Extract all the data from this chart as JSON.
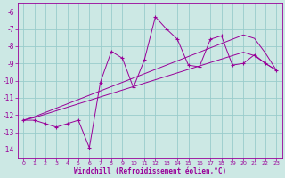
{
  "xlabel": "Windchill (Refroidissement éolien,°C)",
  "bg_color": "#cce8e4",
  "grid_color": "#99cccc",
  "line_color": "#990099",
  "xlim": [
    -0.5,
    23.5
  ],
  "ylim": [
    -14.5,
    -5.5
  ],
  "xticks": [
    0,
    1,
    2,
    3,
    4,
    5,
    6,
    7,
    8,
    9,
    10,
    11,
    12,
    13,
    14,
    15,
    16,
    17,
    18,
    19,
    20,
    21,
    22,
    23
  ],
  "yticks": [
    -14,
    -13,
    -12,
    -11,
    -10,
    -9,
    -8,
    -7,
    -6
  ],
  "x_data": [
    0,
    1,
    2,
    3,
    4,
    5,
    6,
    7,
    8,
    9,
    10,
    11,
    12,
    13,
    14,
    15,
    16,
    17,
    18,
    19,
    20,
    21,
    22,
    23
  ],
  "y_main": [
    -12.3,
    -12.3,
    -12.5,
    -12.7,
    -12.5,
    -12.3,
    -13.9,
    -10.1,
    -8.3,
    -8.7,
    -10.4,
    -8.8,
    -6.3,
    -7.0,
    -7.6,
    -9.1,
    -9.2,
    -7.6,
    -7.4,
    -9.1,
    -9.0,
    -8.5,
    -9.0,
    -9.4
  ],
  "y_line1": [
    -12.3,
    -12.1,
    -11.85,
    -11.6,
    -11.35,
    -11.1,
    -10.85,
    -10.6,
    -10.35,
    -10.1,
    -9.85,
    -9.6,
    -9.35,
    -9.1,
    -8.85,
    -8.6,
    -8.35,
    -8.1,
    -7.85,
    -7.6,
    -7.35,
    -7.55,
    -8.4,
    -9.4
  ],
  "y_line2": [
    -12.3,
    -12.15,
    -11.95,
    -11.75,
    -11.55,
    -11.35,
    -11.15,
    -10.95,
    -10.75,
    -10.55,
    -10.35,
    -10.15,
    -9.95,
    -9.75,
    -9.55,
    -9.35,
    -9.15,
    -8.95,
    -8.75,
    -8.55,
    -8.35,
    -8.55,
    -9.0,
    -9.4
  ]
}
